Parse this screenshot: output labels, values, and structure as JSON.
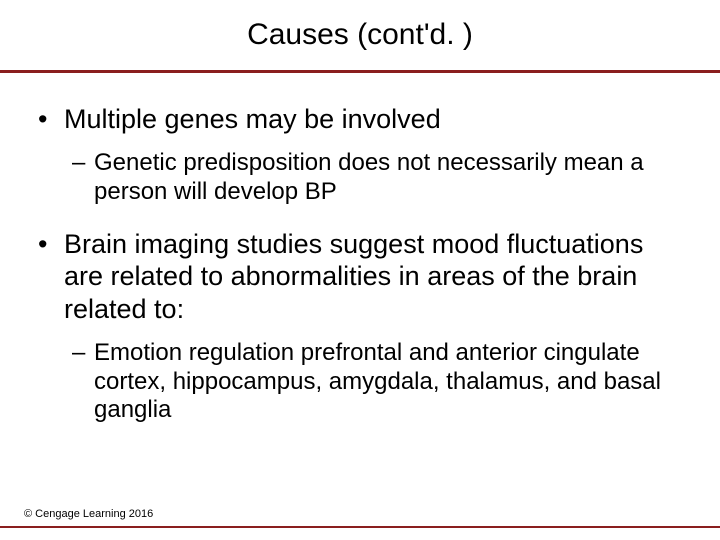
{
  "title": "Causes (cont'd. )",
  "bullets": [
    {
      "level": 1,
      "text": "Multiple genes may be involved",
      "children": [
        {
          "level": 2,
          "text": "Genetic predisposition does not necessarily mean a person will develop BP"
        }
      ]
    },
    {
      "level": 1,
      "text": "Brain imaging studies suggest mood fluctuations are related to abnormalities in areas of the brain related to:",
      "children": [
        {
          "level": 2,
          "text": "Emotion regulation prefrontal and anterior cingulate cortex, hippocampus, amygdala, thalamus, and basal ganglia"
        }
      ]
    }
  ],
  "copyright": "© Cengage Learning 2016",
  "colors": {
    "rule": "#8a1e1e",
    "background": "#ffffff",
    "text": "#000000"
  },
  "typography": {
    "title_fontsize": 30,
    "bullet1_fontsize": 27,
    "bullet2_fontsize": 24,
    "copyright_fontsize": 11,
    "font_family": "Arial"
  }
}
